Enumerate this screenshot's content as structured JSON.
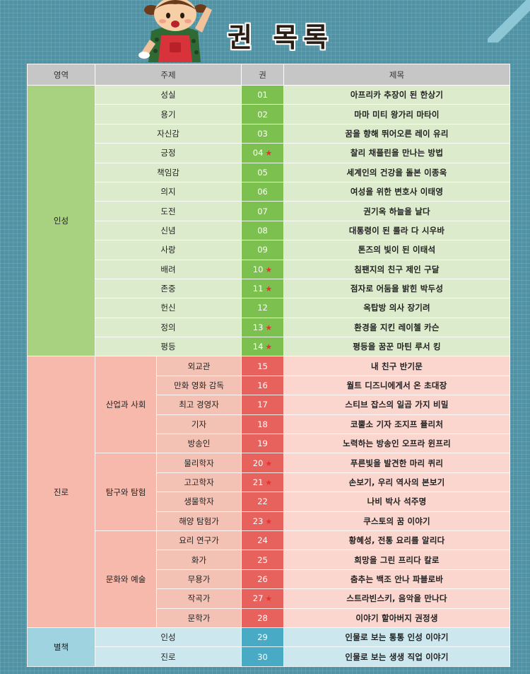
{
  "page_title": "권 목록",
  "colors": {
    "background": "#4e93a6",
    "insung_vol": "#7cc04f",
    "jinro_vol": "#e8625d",
    "byeolchaek_vol": "#48aac4",
    "star": "#e03535"
  },
  "icons": {
    "mascot": "girl-mascot-icon",
    "featured_marker": "star-icon"
  },
  "headers": [
    "영역",
    "주제",
    "권",
    "제목"
  ],
  "star_mark": "★",
  "insung": {
    "area": "인성",
    "rows": [
      {
        "topic": "성실",
        "vol": "01",
        "star": false,
        "title": "아프리카 추장이 된 한상기"
      },
      {
        "topic": "용기",
        "vol": "02",
        "star": false,
        "title": "마마 미티 왕가리 마타이"
      },
      {
        "topic": "자신감",
        "vol": "03",
        "star": false,
        "title": "꿈을 향해 뛰어오른 레이 유리"
      },
      {
        "topic": "긍정",
        "vol": "04",
        "star": true,
        "title": "찰리 채플린을 만나는 방법"
      },
      {
        "topic": "책임감",
        "vol": "05",
        "star": false,
        "title": "세계인의 건강을 돌본 이종욱"
      },
      {
        "topic": "의지",
        "vol": "06",
        "star": false,
        "title": "여성을 위한 변호사 이태영"
      },
      {
        "topic": "도전",
        "vol": "07",
        "star": false,
        "title": "권기옥 하늘을 날다"
      },
      {
        "topic": "신념",
        "vol": "08",
        "star": false,
        "title": "대통령이 된 룰라 다 시우바"
      },
      {
        "topic": "사랑",
        "vol": "09",
        "star": false,
        "title": "톤즈의 빛이 된 이태석"
      },
      {
        "topic": "배려",
        "vol": "10",
        "star": true,
        "title": "침팬지의 친구 제인 구달"
      },
      {
        "topic": "존중",
        "vol": "11",
        "star": true,
        "title": "점자로 어둠을 밝힌 박두성"
      },
      {
        "topic": "헌신",
        "vol": "12",
        "star": false,
        "title": "옥탑방 의사 장기려"
      },
      {
        "topic": "정의",
        "vol": "13",
        "star": true,
        "title": "환경을 지킨 레이첼 카슨"
      },
      {
        "topic": "평등",
        "vol": "14",
        "star": true,
        "title": "평등을 꿈꾼 마틴 루서 킹"
      }
    ]
  },
  "jinro": {
    "area": "진로",
    "groups": [
      {
        "topic": "산업과 사회",
        "rows": [
          {
            "job": "외교관",
            "vol": "15",
            "star": false,
            "title": "내 친구 반기문"
          },
          {
            "job": "만화 영화 감독",
            "vol": "16",
            "star": false,
            "title": "월트 디즈니에게서 온 초대장"
          },
          {
            "job": "최고 경영자",
            "vol": "17",
            "star": false,
            "title": "스티브 잡스의 일곱 가지 비밀"
          },
          {
            "job": "기자",
            "vol": "18",
            "star": false,
            "title": "코뿔소 기자 조지프 퓰리처"
          },
          {
            "job": "방송인",
            "vol": "19",
            "star": false,
            "title": "노력하는 방송인 오프라 윈프리"
          }
        ]
      },
      {
        "topic": "탐구와 탐험",
        "rows": [
          {
            "job": "물리학자",
            "vol": "20",
            "star": true,
            "title": "푸른빛을 발견한 마리 퀴리"
          },
          {
            "job": "고고학자",
            "vol": "21",
            "star": true,
            "title": "손보기, 우리 역사의 본보기"
          },
          {
            "job": "생물학자",
            "vol": "22",
            "star": false,
            "title": "나비 박사 석주명"
          },
          {
            "job": "해양 탐험가",
            "vol": "23",
            "star": true,
            "title": "쿠스토의 꿈 이야기"
          }
        ]
      },
      {
        "topic": "문화와 예술",
        "rows": [
          {
            "job": "요리 연구가",
            "vol": "24",
            "star": false,
            "title": "황혜성, 전통 요리를 알리다"
          },
          {
            "job": "화가",
            "vol": "25",
            "star": false,
            "title": "희망을 그린 프리다 칼로"
          },
          {
            "job": "무용가",
            "vol": "26",
            "star": false,
            "title": "춤추는 백조 안나 파블로바"
          },
          {
            "job": "작곡가",
            "vol": "27",
            "star": true,
            "title": "스트라빈스키, 음악을 만나다"
          },
          {
            "job": "문학가",
            "vol": "28",
            "star": false,
            "title": "이야기 할아버지 권정생"
          }
        ]
      }
    ]
  },
  "byeolchaek": {
    "area": "별책",
    "rows": [
      {
        "topic": "인성",
        "vol": "29",
        "star": false,
        "title": "인물로 보는 통통 인성 이야기"
      },
      {
        "topic": "진로",
        "vol": "30",
        "star": false,
        "title": "인물로 보는 생생 직업 이야기"
      }
    ]
  }
}
